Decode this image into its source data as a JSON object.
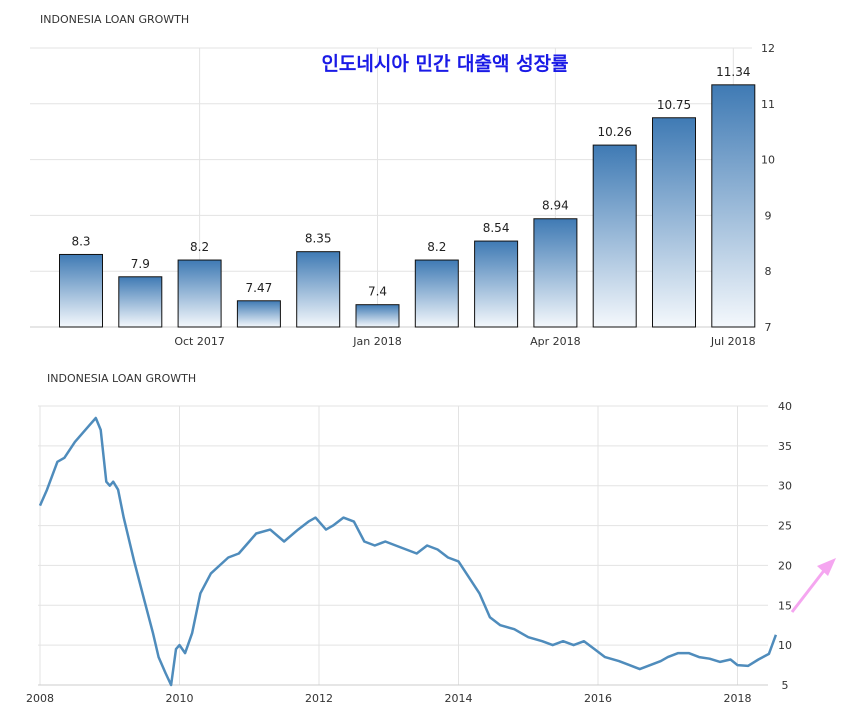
{
  "overlay_caption": "인도네시아 민간 대출액 성장률",
  "colors": {
    "bar_top": "#3f7ab4",
    "bar_bottom": "#f4f8fc",
    "bar_stroke": "#111111",
    "line": "#4f8cbc",
    "grid": "#e3e3e3",
    "caption": "#1a1ae6",
    "arrow": "#f5a6f0"
  },
  "chart_data": [
    {
      "type": "bar",
      "title": "INDONESIA LOAN GROWTH",
      "values": [
        8.3,
        7.9,
        8.2,
        7.47,
        8.35,
        7.4,
        8.2,
        8.54,
        8.94,
        10.26,
        10.75,
        11.34
      ],
      "data_labels": [
        "8.3",
        "7.9",
        "8.2",
        "7.47",
        "8.35",
        "7.4",
        "8.2",
        "8.54",
        "8.94",
        "10.26",
        "10.75",
        "11.34"
      ],
      "x_tick_labels": [
        {
          "index": 2,
          "label": "Oct 2017"
        },
        {
          "index": 5,
          "label": "Jan 2018"
        },
        {
          "index": 8,
          "label": "Apr 2018"
        },
        {
          "index": 11,
          "label": "Jul 2018"
        }
      ],
      "ylim": [
        7,
        12
      ],
      "yticks": [
        7,
        8,
        9,
        10,
        11,
        12
      ],
      "y_axis_side": "right",
      "grid": true
    },
    {
      "type": "line",
      "title": "INDONESIA LOAN GROWTH",
      "x": [
        2008.0,
        2008.1,
        2008.25,
        2008.35,
        2008.5,
        2008.7,
        2008.8,
        2008.87,
        2008.95,
        2009.0,
        2009.05,
        2009.12,
        2009.2,
        2009.35,
        2009.5,
        2009.62,
        2009.7,
        2009.8,
        2009.88,
        2009.95,
        2010.0,
        2010.08,
        2010.18,
        2010.3,
        2010.45,
        2010.7,
        2010.85,
        2011.0,
        2011.1,
        2011.3,
        2011.5,
        2011.7,
        2011.85,
        2011.95,
        2012.1,
        2012.2,
        2012.35,
        2012.5,
        2012.65,
        2012.8,
        2012.95,
        2013.1,
        2013.25,
        2013.4,
        2013.55,
        2013.7,
        2013.85,
        2014.0,
        2014.15,
        2014.3,
        2014.45,
        2014.6,
        2014.8,
        2015.0,
        2015.2,
        2015.35,
        2015.5,
        2015.65,
        2015.8,
        2015.95,
        2016.1,
        2016.3,
        2016.45,
        2016.6,
        2016.75,
        2016.9,
        2017.0,
        2017.15,
        2017.3,
        2017.45,
        2017.6,
        2017.75,
        2017.9,
        2018.0,
        2018.15,
        2018.3,
        2018.45,
        2018.55
      ],
      "y": [
        27.5,
        29.5,
        33.0,
        33.5,
        35.5,
        37.5,
        38.5,
        37.0,
        30.5,
        30.0,
        30.5,
        29.5,
        26.0,
        20.5,
        15.5,
        11.5,
        8.5,
        6.5,
        5.0,
        9.5,
        10.0,
        9.0,
        11.5,
        16.5,
        19.0,
        21.0,
        21.5,
        23.0,
        24.0,
        24.5,
        23.0,
        24.5,
        25.5,
        26.0,
        24.5,
        25.0,
        26.0,
        25.5,
        23.0,
        22.5,
        23.0,
        22.5,
        22.0,
        21.5,
        22.5,
        22.0,
        21.0,
        20.5,
        18.5,
        16.5,
        13.5,
        12.5,
        12.0,
        11.0,
        10.5,
        10.0,
        10.5,
        10.0,
        10.5,
        9.5,
        8.5,
        8.0,
        7.5,
        7.0,
        7.5,
        8.0,
        8.5,
        9.0,
        9.0,
        8.5,
        8.3,
        7.9,
        8.2,
        7.5,
        7.4,
        8.2,
        8.9,
        11.3
      ],
      "xlim": [
        2008,
        2018.65
      ],
      "x_tick_labels": [
        "2008",
        "2010",
        "2012",
        "2014",
        "2016",
        "2018"
      ],
      "x_ticks": [
        2008,
        2010,
        2012,
        2014,
        2016,
        2018
      ],
      "ylim": [
        5,
        40
      ],
      "yticks": [
        5,
        10,
        15,
        20,
        25,
        30,
        35,
        40
      ],
      "y_axis_side": "right",
      "grid": true
    }
  ]
}
